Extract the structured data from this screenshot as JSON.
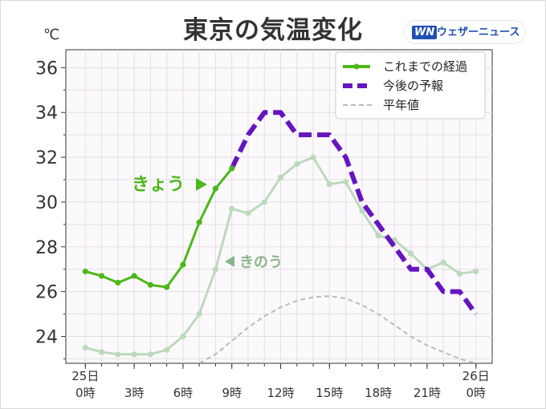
{
  "header": {
    "title": "東京の気温変化",
    "unit": "℃",
    "logo_mark": "WN",
    "logo_text": "ウェザーニュース"
  },
  "annotations": {
    "today": "きょう",
    "yesterday": "きのう"
  },
  "legend": {
    "observed": "これまでの経過",
    "forecast": "今後の予報",
    "normal": "平年値"
  },
  "colors": {
    "observed": "#4cb81a",
    "yesterday": "#bcd9bc",
    "forecast": "#6614c0",
    "normal": "#bbbbbb",
    "today_label": "#4cb81a",
    "yesterday_label": "#8ab58a"
  },
  "chart_data": {
    "type": "line",
    "title": "東京の気温変化",
    "ylabel": "℃",
    "ylim": [
      22.8,
      36.8
    ],
    "xlim": [
      -1.2,
      25
    ],
    "yticks": [
      24,
      26,
      28,
      30,
      32,
      34,
      36
    ],
    "xticks": [
      {
        "x": 0,
        "top": "25日",
        "bottom": "0時"
      },
      {
        "x": 3,
        "top": "",
        "bottom": "3時"
      },
      {
        "x": 6,
        "top": "",
        "bottom": "6時"
      },
      {
        "x": 9,
        "top": "",
        "bottom": "9時"
      },
      {
        "x": 12,
        "top": "",
        "bottom": "12時"
      },
      {
        "x": 15,
        "top": "",
        "bottom": "15時"
      },
      {
        "x": 18,
        "top": "",
        "bottom": "18時"
      },
      {
        "x": 21,
        "top": "",
        "bottom": "21時"
      },
      {
        "x": 24,
        "top": "26日",
        "bottom": "0時"
      }
    ],
    "grid": true,
    "legend_position": "top-right",
    "series": [
      {
        "name": "これまでの経過",
        "style": "solid-markers",
        "x": [
          0,
          1,
          2,
          3,
          4,
          5,
          6,
          7,
          8,
          9
        ],
        "y": [
          26.9,
          26.7,
          26.4,
          26.7,
          26.3,
          26.2,
          27.2,
          29.1,
          30.6,
          31.5
        ]
      },
      {
        "name": "きのう",
        "style": "light-markers",
        "x": [
          0,
          1,
          2,
          3,
          4,
          5,
          6,
          7,
          8,
          9,
          10,
          11,
          12,
          13,
          14,
          15,
          16,
          17,
          18,
          19,
          20,
          21,
          22,
          23,
          24
        ],
        "y": [
          23.5,
          23.3,
          23.2,
          23.2,
          23.2,
          23.4,
          24.0,
          25.0,
          27.0,
          29.7,
          29.5,
          30.0,
          31.1,
          31.7,
          32.0,
          30.8,
          30.9,
          29.6,
          28.5,
          28.3,
          27.7,
          27.0,
          27.3,
          26.8,
          26.9
        ]
      },
      {
        "name": "今後の予報",
        "style": "dashed-thick",
        "x": [
          9,
          10,
          11,
          12,
          13,
          14,
          15,
          16,
          17,
          18,
          19,
          20,
          21,
          22,
          23,
          24
        ],
        "y": [
          31.5,
          33.0,
          34.0,
          34.0,
          33.0,
          33.0,
          33.0,
          32.0,
          30.0,
          29.0,
          28.0,
          27.0,
          27.0,
          26.0,
          26.0,
          25.0
        ]
      },
      {
        "name": "平年値",
        "style": "dashed-thin",
        "x": [
          7,
          8,
          9,
          10,
          11,
          12,
          13,
          14,
          15,
          16,
          17,
          18,
          19,
          20,
          21,
          22,
          23,
          24
        ],
        "y": [
          22.8,
          23.2,
          23.8,
          24.4,
          24.9,
          25.3,
          25.6,
          25.75,
          25.8,
          25.7,
          25.4,
          25.0,
          24.5,
          24.0,
          23.6,
          23.3,
          23.0,
          22.8
        ]
      }
    ]
  }
}
